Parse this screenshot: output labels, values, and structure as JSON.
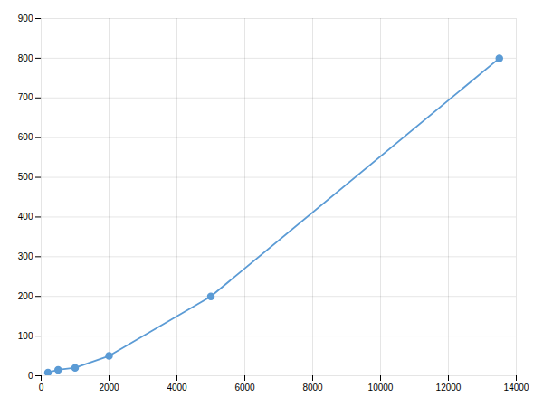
{
  "chart_data": {
    "type": "line",
    "x": [
      200,
      500,
      1000,
      2000,
      5000,
      13500
    ],
    "values": [
      8,
      15,
      20,
      50,
      200,
      800
    ],
    "color": "#5b9bd5",
    "marker": "circle",
    "xlim": [
      0,
      14000
    ],
    "ylim": [
      0,
      900
    ],
    "xticks": [
      0,
      2000,
      4000,
      6000,
      8000,
      10000,
      12000,
      14000
    ],
    "yticks": [
      0,
      100,
      200,
      300,
      400,
      500,
      600,
      700,
      800,
      900
    ],
    "grid": true
  }
}
